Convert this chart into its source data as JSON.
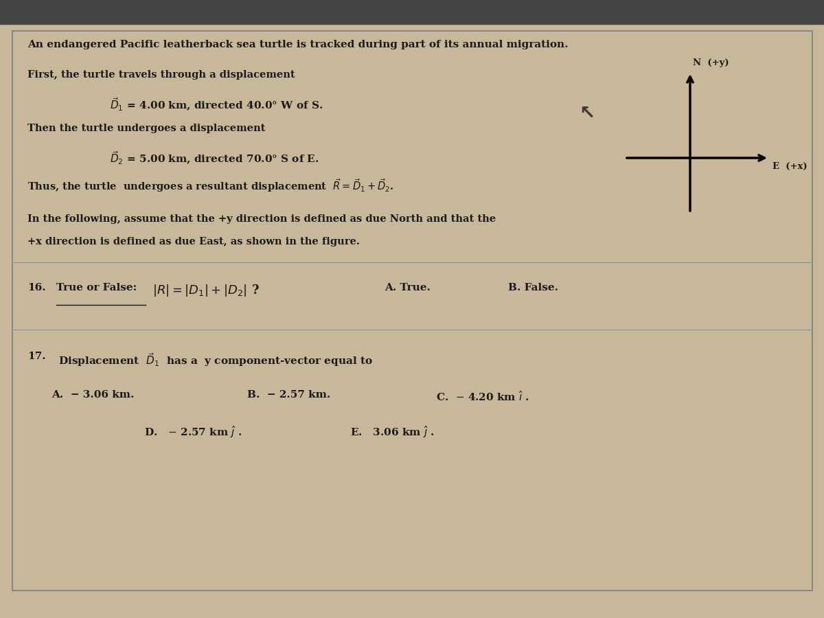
{
  "bg_color": "#c8b89a",
  "top_bar_color": "#444444",
  "text_color": "#1a1a1a",
  "title_line": "An endangered Pacific leatherback sea turtle is tracked during part of its annual migration.",
  "para1_line1": "First, the turtle travels through a displacement",
  "para2_line1": "Then the turtle undergoes a displacement",
  "para4_line1": "In the following, assume that the +y direction is defined as due North and that the",
  "para4_line2": "+x direction is defined as due East, as shown in the figure.",
  "q16_label": "16.",
  "q16_underline": "True or False:",
  "q16_A": "A. True.",
  "q16_B": "B. False.",
  "q17_label": "17.",
  "q17_A": "A.  − 3.06 km.",
  "q17_B": "B.  − 2.57 km.",
  "axis_N_label": "N  (+y)",
  "axis_E_label": "E  (+x)"
}
